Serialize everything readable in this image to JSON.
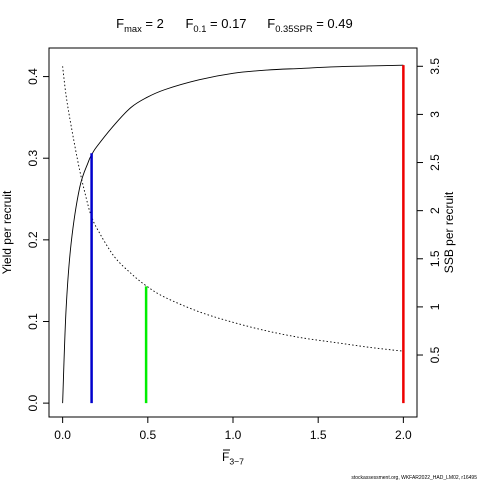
{
  "chart_data": {
    "type": "line",
    "title_parts": [
      {
        "base": "F",
        "sub": "max",
        "value": " = 2"
      },
      {
        "base": "F",
        "sub": "0.1",
        "value": " = 0.17"
      },
      {
        "base": "F",
        "sub": "0.35SPR",
        "value": " = 0.49"
      }
    ],
    "xlabel": {
      "base": "F",
      "sub": "3−7"
    },
    "ylabel_left": "Yield per recruit",
    "ylabel_right": "SSB per recruit",
    "x_ticks": [
      "0.0",
      "0.5",
      "1.0",
      "1.5",
      "2.0"
    ],
    "y_left_ticks": [
      "0.0",
      "0.1",
      "0.2",
      "0.3",
      "0.4"
    ],
    "y_right_ticks": [
      "0.5",
      "1",
      "1.5",
      "2",
      "2.5",
      "3",
      "3.5"
    ],
    "xlim": [
      -0.08,
      2.08
    ],
    "ylim_left": [
      -0.017,
      0.435
    ],
    "ylim_right": [
      -0.144,
      3.69
    ],
    "series": [
      {
        "axis": "left",
        "style": "solid",
        "color": "#000000",
        "x": [
          0.0,
          0.02,
          0.05,
          0.1,
          0.15,
          0.17,
          0.2,
          0.3,
          0.4,
          0.49,
          0.6,
          0.8,
          1.0,
          1.2,
          1.4,
          1.6,
          1.8,
          2.0
        ],
        "values": [
          0.0,
          0.114,
          0.196,
          0.264,
          0.295,
          0.304,
          0.314,
          0.34,
          0.362,
          0.374,
          0.384,
          0.396,
          0.404,
          0.408,
          0.41,
          0.412,
          0.413,
          0.414
        ]
      },
      {
        "axis": "right",
        "style": "dotted",
        "color": "#000000",
        "x": [
          0.0,
          0.02,
          0.05,
          0.1,
          0.15,
          0.17,
          0.2,
          0.3,
          0.4,
          0.49,
          0.6,
          0.8,
          1.0,
          1.2,
          1.4,
          1.6,
          1.8,
          2.0
        ],
        "values": [
          3.5,
          3.2,
          2.88,
          2.42,
          2.05,
          1.94,
          1.82,
          1.53,
          1.35,
          1.22,
          1.1,
          0.95,
          0.84,
          0.75,
          0.68,
          0.63,
          0.58,
          0.54
        ]
      }
    ],
    "reference_lines": [
      {
        "x": 0.17,
        "y_top": 0.306,
        "color": "#0000cc"
      },
      {
        "x": 0.49,
        "y_top": 0.143,
        "color": "#00ee00"
      },
      {
        "x": 2.0,
        "y_top": 0.414,
        "color": "#ee0000"
      }
    ]
  },
  "footer": {
    "credit": "stockassessment.org, WKFAR2022_HAD_LM02, r16495"
  }
}
